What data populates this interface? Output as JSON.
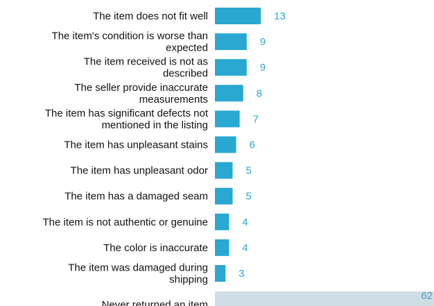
{
  "chart_data": {
    "type": "bar",
    "orientation": "horizontal",
    "categories": [
      [
        "The item does not fit well"
      ],
      [
        "The item's condition is worse than",
        "expected"
      ],
      [
        "The item received is not as",
        "described"
      ],
      [
        "The seller provide inaccurate",
        "measurements"
      ],
      [
        "The item has significant defects not",
        "mentioned in the listing"
      ],
      [
        "The item has unpleasant stains"
      ],
      [
        "The item has unpleasant odor"
      ],
      [
        "The item has a damaged seam"
      ],
      [
        "The item is not authentic or genuine"
      ],
      [
        "The color is inaccurate"
      ],
      [
        "The item was damaged during",
        "shipping"
      ],
      [
        "Never returned an item"
      ]
    ],
    "values": [
      13,
      9,
      9,
      8,
      7,
      6,
      5,
      5,
      4,
      4,
      3,
      62
    ],
    "value_labels": [
      "13",
      "9",
      "9",
      "8",
      "7",
      "6",
      "5",
      "5",
      "4",
      "4",
      "3",
      "62"
    ],
    "xlim": [
      0,
      62
    ],
    "grid": false,
    "legend": "none",
    "colors": {
      "bar": "#29a8d2",
      "bar_highlight": "#cfdde5",
      "value_text": "#29a8d2",
      "value_text_highlight": "#4fa0c6",
      "label_text": "#111111"
    }
  }
}
